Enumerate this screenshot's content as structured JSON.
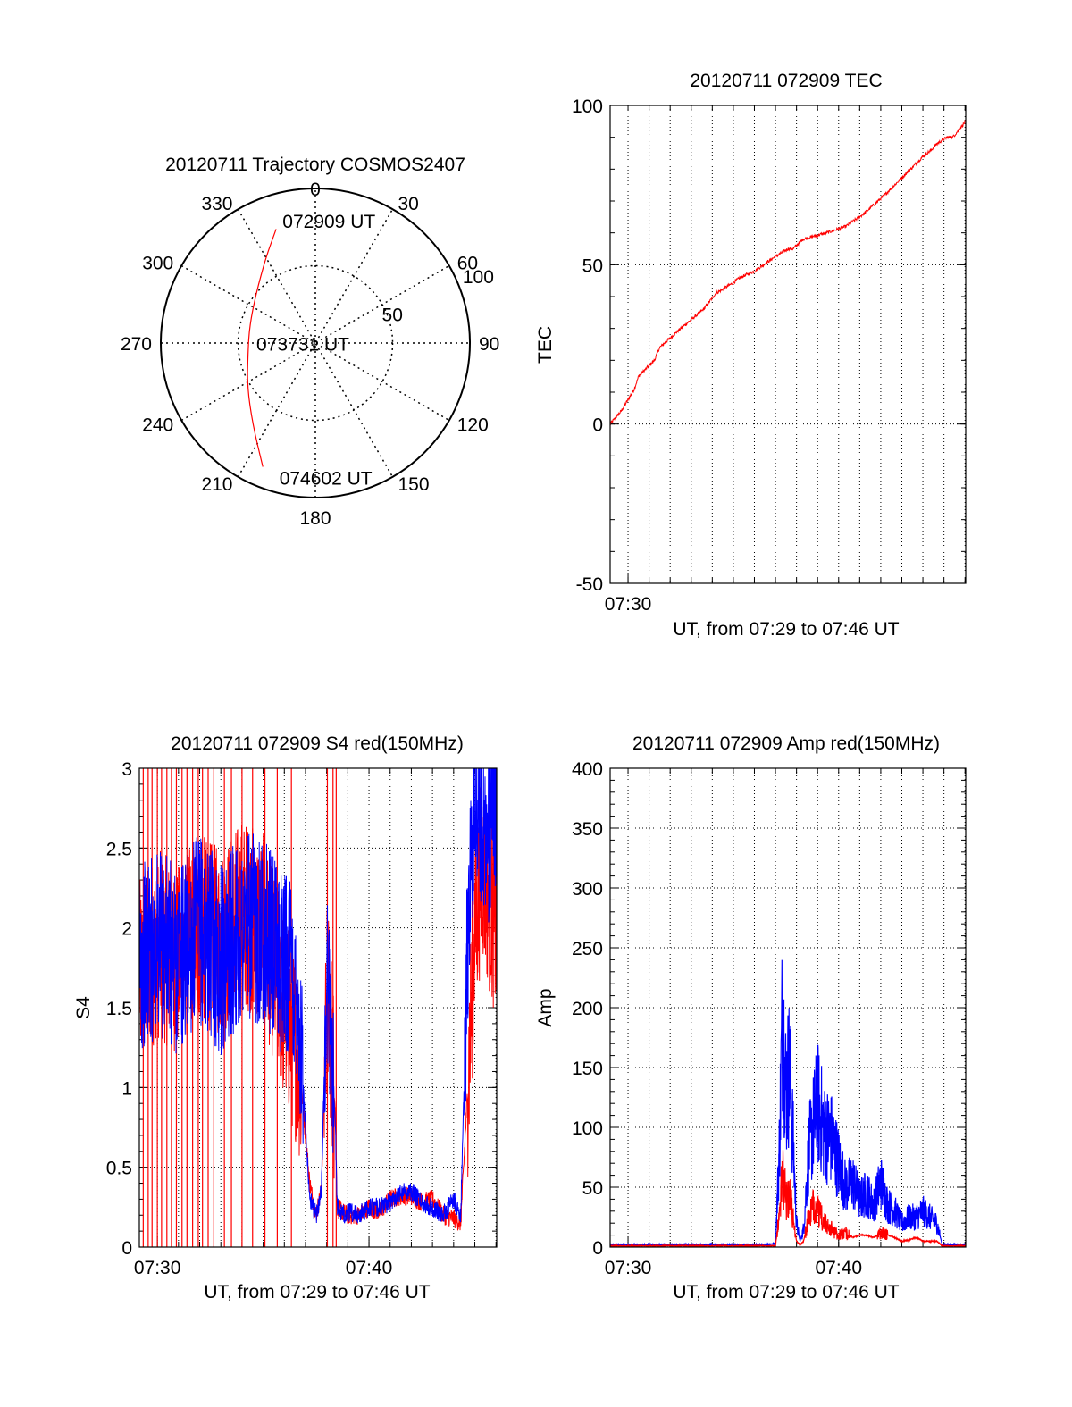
{
  "colors": {
    "red": "#ff0000",
    "blue": "#0000ff",
    "axis": "#000000",
    "grid": "#000000"
  },
  "chart_data": [
    {
      "id": "trajectory",
      "type": "polar",
      "title": "20120711 Trajectory COSMOS2407",
      "angle_labels": [
        "0",
        "30",
        "60",
        "90",
        "120",
        "150",
        "180",
        "210",
        "240",
        "270",
        "300",
        "330"
      ],
      "radial_labels": [
        "50",
        "100"
      ],
      "rlim": [
        0,
        100
      ],
      "direction": "clockwise from north",
      "grid": true,
      "series": [
        {
          "color": "#ff0000",
          "points": [
            {
              "az": 341,
              "zen": 78
            },
            {
              "az": 330,
              "zen": 64
            },
            {
              "az": 310,
              "zen": 50
            },
            {
              "az": 285,
              "zen": 44
            },
            {
              "az": 262,
              "zen": 44
            },
            {
              "az": 238,
              "zen": 52
            },
            {
              "az": 218,
              "zen": 66
            },
            {
              "az": 203,
              "zen": 87
            }
          ]
        }
      ],
      "annotations": [
        {
          "text": "072909 UT",
          "az": 345,
          "zen": 82
        },
        {
          "text": "073731 UT",
          "az": 268,
          "zen": 6
        },
        {
          "text": "074602 UT",
          "az": 195,
          "zen": 90
        }
      ]
    },
    {
      "id": "tec",
      "type": "line",
      "title": "20120711 072909 TEC",
      "xlabel": "UT, from 07:29 to 07:46 UT",
      "ylabel": "TEC",
      "xlim": [
        "07:29:09",
        "07:46:02"
      ],
      "ylim": [
        -50,
        100
      ],
      "yticks": [
        -50,
        0,
        50,
        100
      ],
      "xtick_labels": [
        {
          "t": "07:30",
          "label": "07:30"
        }
      ],
      "grid": true,
      "series": [
        {
          "color": "#ff0000",
          "x": [
            "07:29:09",
            "07:29:40",
            "07:30:18",
            "07:30:30",
            "07:31:15",
            "07:31:30",
            "07:32:30",
            "07:33:35",
            "07:34:10",
            "07:34:55",
            "07:35:20",
            "07:36:00",
            "07:36:52",
            "07:37:36",
            "07:37:50",
            "07:38:18",
            "07:39:25",
            "07:40:20",
            "07:41:12",
            "07:42:12",
            "07:43:34",
            "07:44:00",
            "07:44:24",
            "07:44:40",
            "07:45:09",
            "07:45:25",
            "07:46:02"
          ],
          "y": [
            0,
            4,
            11,
            15,
            20,
            24,
            30,
            36,
            41,
            44,
            46,
            48,
            52,
            55,
            55,
            58,
            60,
            62,
            66,
            72,
            81,
            84,
            86,
            88,
            90,
            90,
            95
          ]
        }
      ]
    },
    {
      "id": "s4",
      "type": "line",
      "title": "20120711 072909 S4 red(150MHz)",
      "xlabel": "UT, from 07:29 to 07:46 UT",
      "ylabel": "S4",
      "xlim": [
        "07:29:09",
        "07:46:02"
      ],
      "ylim": [
        0,
        3
      ],
      "yticks": [
        0,
        0.5,
        1,
        1.5,
        2,
        2.5,
        3
      ],
      "xtick_labels": [
        {
          "t": "07:30",
          "label": "07:30"
        },
        {
          "t": "07:40",
          "label": "07:40"
        }
      ],
      "grid": true,
      "series": [
        {
          "color": "#ff0000",
          "x": [
            "07:29:09",
            "07:30:00",
            "07:31:00",
            "07:32:00",
            "07:33:00",
            "07:34:00",
            "07:35:00",
            "07:36:00",
            "07:36:40",
            "07:37:12",
            "07:37:30",
            "07:37:45",
            "07:38:00",
            "07:38:10",
            "07:38:24",
            "07:38:30",
            "07:38:45",
            "07:39:00",
            "07:39:30",
            "07:40:00",
            "07:40:30",
            "07:41:00",
            "07:41:30",
            "07:42:00",
            "07:42:30",
            "07:43:00",
            "07:43:30",
            "07:44:00",
            "07:44:20",
            "07:44:40",
            "07:45:00",
            "07:45:20",
            "07:45:40",
            "07:46:02"
          ],
          "y": [
            1.7,
            1.9,
            1.8,
            2.0,
            1.9,
            2.1,
            2.0,
            1.5,
            1.2,
            0.4,
            0.2,
            0.35,
            1.6,
            1.4,
            0.9,
            0.25,
            0.22,
            0.2,
            0.2,
            0.25,
            0.22,
            0.3,
            0.32,
            0.32,
            0.28,
            0.3,
            0.2,
            0.18,
            0.15,
            1.0,
            2.0,
            2.4,
            2.2,
            2.0
          ],
          "drop_spikes": [
            "07:29:20",
            "07:29:34",
            "07:29:45",
            "07:30:00",
            "07:30:12",
            "07:30:27",
            "07:30:40",
            "07:30:54",
            "07:31:10",
            "07:31:24",
            "07:31:40",
            "07:31:56",
            "07:32:08",
            "07:32:24",
            "07:32:40",
            "07:33:10",
            "07:33:30",
            "07:34:00",
            "07:34:30",
            "07:35:05",
            "07:35:40",
            "07:36:20",
            "07:38:02",
            "07:38:18",
            "07:38:27"
          ]
        },
        {
          "color": "#0000ff",
          "x": [
            "07:29:09",
            "07:30:00",
            "07:31:00",
            "07:32:00",
            "07:33:00",
            "07:34:00",
            "07:35:00",
            "07:35:40",
            "07:36:10",
            "07:36:40",
            "07:37:12",
            "07:37:30",
            "07:37:45",
            "07:38:00",
            "07:38:10",
            "07:38:24",
            "07:38:30",
            "07:38:45",
            "07:39:00",
            "07:39:30",
            "07:40:00",
            "07:40:30",
            "07:41:00",
            "07:41:30",
            "07:42:00",
            "07:42:30",
            "07:43:00",
            "07:43:30",
            "07:44:00",
            "07:44:20",
            "07:44:35",
            "07:44:50",
            "07:45:05",
            "07:45:20",
            "07:45:40",
            "07:46:02"
          ],
          "y": [
            1.8,
            1.9,
            1.8,
            2.0,
            1.8,
            2.0,
            2.0,
            1.8,
            1.8,
            1.5,
            0.3,
            0.2,
            0.35,
            1.7,
            1.5,
            0.8,
            0.25,
            0.2,
            0.22,
            0.2,
            0.25,
            0.25,
            0.28,
            0.35,
            0.35,
            0.28,
            0.25,
            0.2,
            0.3,
            0.2,
            1.5,
            2.6,
            2.8,
            2.7,
            2.6,
            2.8
          ]
        }
      ]
    },
    {
      "id": "amp",
      "type": "line",
      "title": "20120711 072909 Amp red(150MHz)",
      "xlabel": "UT, from 07:29 to 07:46 UT",
      "ylabel": "Amp",
      "xlim": [
        "07:29:09",
        "07:46:02"
      ],
      "ylim": [
        0,
        400
      ],
      "yticks": [
        0,
        50,
        100,
        150,
        200,
        250,
        300,
        350,
        400
      ],
      "xtick_labels": [
        {
          "t": "07:30",
          "label": "07:30"
        },
        {
          "t": "07:40",
          "label": "07:40"
        }
      ],
      "grid": true,
      "series": [
        {
          "color": "#0000ff",
          "x": [
            "07:29:09",
            "07:36:30",
            "07:37:00",
            "07:37:12",
            "07:37:20",
            "07:37:30",
            "07:37:40",
            "07:37:50",
            "07:38:00",
            "07:38:10",
            "07:38:20",
            "07:38:35",
            "07:38:50",
            "07:39:00",
            "07:39:20",
            "07:39:40",
            "07:40:00",
            "07:40:20",
            "07:40:40",
            "07:41:00",
            "07:41:20",
            "07:41:40",
            "07:42:00",
            "07:42:20",
            "07:42:40",
            "07:43:00",
            "07:43:20",
            "07:43:40",
            "07:44:00",
            "07:44:20",
            "07:44:40",
            "07:44:55",
            "07:45:10",
            "07:46:02"
          ],
          "y": [
            2,
            2,
            3,
            90,
            200,
            130,
            150,
            90,
            20,
            5,
            15,
            80,
            105,
            120,
            95,
            90,
            70,
            50,
            55,
            40,
            45,
            35,
            55,
            35,
            30,
            20,
            25,
            25,
            30,
            25,
            20,
            2,
            2,
            2
          ]
        },
        {
          "color": "#ff0000",
          "x": [
            "07:29:09",
            "07:36:30",
            "07:37:00",
            "07:37:12",
            "07:37:20",
            "07:37:30",
            "07:37:40",
            "07:37:50",
            "07:38:00",
            "07:38:10",
            "07:38:20",
            "07:38:35",
            "07:38:50",
            "07:39:00",
            "07:39:20",
            "07:39:40",
            "07:40:00",
            "07:40:20",
            "07:40:40",
            "07:41:00",
            "07:41:20",
            "07:41:40",
            "07:42:00",
            "07:42:20",
            "07:42:40",
            "07:43:00",
            "07:43:20",
            "07:43:40",
            "07:44:00",
            "07:44:20",
            "07:44:40",
            "07:44:55",
            "07:45:10",
            "07:46:02"
          ],
          "y": [
            1,
            1,
            1,
            30,
            60,
            40,
            45,
            25,
            5,
            2,
            5,
            25,
            35,
            30,
            20,
            15,
            10,
            12,
            8,
            10,
            10,
            8,
            12,
            10,
            8,
            5,
            6,
            8,
            5,
            5,
            5,
            1,
            1,
            1
          ]
        }
      ]
    }
  ]
}
